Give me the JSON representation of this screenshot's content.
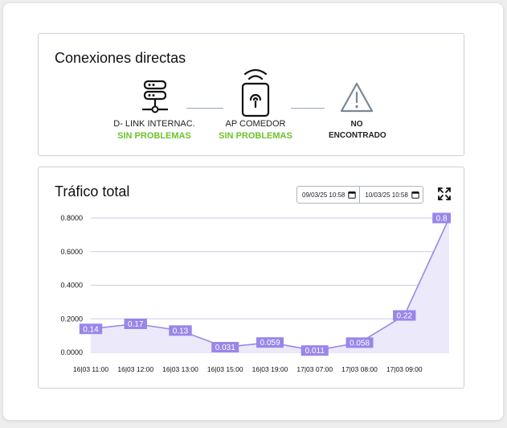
{
  "connections": {
    "title": "Conexiones directas",
    "nodes": [
      {
        "name": "D- LINK INTERNAC.",
        "status": "SIN PROBLEMAS",
        "icon": "server-icon"
      },
      {
        "name": "AP COMEDOR",
        "status": "SIN PROBLEMAS",
        "icon": "access-point-icon"
      },
      {
        "name": "NO ENCONTRADO",
        "status": "",
        "icon": "warning-icon"
      }
    ]
  },
  "traffic": {
    "title": "Tráfico total",
    "date_from": "09/03/25 10:58",
    "date_to": "10/03/25 10:58",
    "expand_icon": "expand-icon"
  },
  "colors": {
    "success": "#6cc32b",
    "series": "#9a86e8",
    "grid": "#c8ccf0"
  },
  "chart_data": {
    "type": "area",
    "x": [
      "16|03 11:00",
      "16|03 12:00",
      "16|03 13:00",
      "16|03 15:00",
      "16|03 19:00",
      "17|03 07:00",
      "17|03 08:00",
      "17|03 09:00",
      ""
    ],
    "x_tick_labels": [
      "16|03 11:00",
      "16|03 12:00",
      "16|03 13:00",
      "16|03 15:00",
      "16|03 19:00",
      "17|03 07:00",
      "17|03 08:00",
      "17|03 09:00"
    ],
    "values": [
      0.14,
      0.17,
      0.13,
      0.031,
      0.059,
      0.011,
      0.058,
      0.22,
      0.8
    ],
    "data_labels": [
      "0.14",
      "0.17",
      "0.13",
      "0.031",
      "0.059",
      "0.011",
      "0.058",
      "0.22",
      "0.8"
    ],
    "y_ticks": [
      "0.0000",
      "0.2000",
      "0.4000",
      "0.6000",
      "0.8000"
    ],
    "ylim": [
      0,
      0.8
    ],
    "grid": true,
    "legend": "none"
  }
}
